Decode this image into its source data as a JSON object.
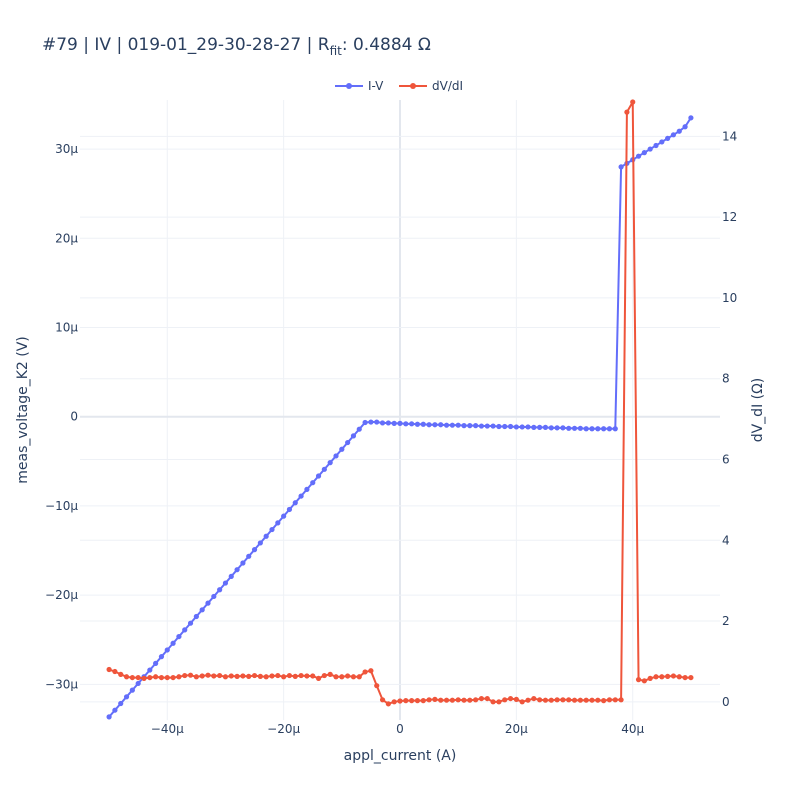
{
  "chart_data": {
    "type": "line",
    "title": {
      "main": "#79 | IV | 019-01_29-30-28-27 | R",
      "sub": "fit",
      "tail": ": 0.4884 Ω"
    },
    "xlabel": "appl_current (A)",
    "ylabel_left": "meas_voltage_K2 (V)",
    "ylabel_right": "dV_dI (Ω)",
    "xlim": [
      -5.5e-05,
      5.5e-05
    ],
    "ylim_left": [
      -3.4e-05,
      3.55e-05
    ],
    "ylim_right": [
      -0.45,
      14.9
    ],
    "x_ticks": [
      {
        "value": -4e-05,
        "label": "−40µ"
      },
      {
        "value": -2e-05,
        "label": "−20µ"
      },
      {
        "value": 0,
        "label": "0"
      },
      {
        "value": 2e-05,
        "label": "20µ"
      },
      {
        "value": 4e-05,
        "label": "40µ"
      }
    ],
    "y_left_ticks": [
      {
        "value": 3e-05,
        "label": "30µ"
      },
      {
        "value": 2e-05,
        "label": "20µ"
      },
      {
        "value": 1e-05,
        "label": "10µ"
      },
      {
        "value": 0,
        "label": "0"
      },
      {
        "value": -1e-05,
        "label": "−10µ"
      },
      {
        "value": -2e-05,
        "label": "−20µ"
      },
      {
        "value": -3e-05,
        "label": "−30µ"
      }
    ],
    "y_right_ticks": [
      {
        "value": 14,
        "label": "14"
      },
      {
        "value": 12,
        "label": "12"
      },
      {
        "value": 10,
        "label": "10"
      },
      {
        "value": 8,
        "label": "8"
      },
      {
        "value": 6,
        "label": "6"
      },
      {
        "value": 4,
        "label": "4"
      },
      {
        "value": 2,
        "label": "2"
      },
      {
        "value": 0,
        "label": "0"
      }
    ],
    "legend_position": "top-center",
    "grid": true,
    "series": [
      {
        "name": "I-V",
        "color": "#636efa",
        "axis": "left",
        "x": [
          -5e-05,
          -4.9e-05,
          -4.8e-05,
          -4.7e-05,
          -4.6e-05,
          -4.5e-05,
          -4.4e-05,
          -4.3e-05,
          -4.2e-05,
          -4.1e-05,
          -4e-05,
          -3.9e-05,
          -3.8e-05,
          -3.7e-05,
          -3.6e-05,
          -3.5e-05,
          -3.4e-05,
          -3.3e-05,
          -3.2e-05,
          -3.1e-05,
          -3e-05,
          -2.9e-05,
          -2.8e-05,
          -2.7e-05,
          -2.6e-05,
          -2.5e-05,
          -2.4e-05,
          -2.3e-05,
          -2.2e-05,
          -2.1e-05,
          -2e-05,
          -1.9e-05,
          -1.8e-05,
          -1.7e-05,
          -1.6e-05,
          -1.5e-05,
          -1.4e-05,
          -1.3e-05,
          -1.2e-05,
          -1.1e-05,
          -1e-05,
          -9e-06,
          -8e-06,
          -7e-06,
          -6e-06,
          -5e-06,
          -4e-06,
          -3e-06,
          -2e-06,
          -1e-06,
          0,
          1e-06,
          2e-06,
          3e-06,
          4e-06,
          5e-06,
          6e-06,
          7e-06,
          8e-06,
          9e-06,
          1e-05,
          1.1e-05,
          1.2e-05,
          1.3e-05,
          1.4e-05,
          1.5e-05,
          1.6e-05,
          1.7e-05,
          1.8e-05,
          1.9e-05,
          2e-05,
          2.1e-05,
          2.2e-05,
          2.3e-05,
          2.4e-05,
          2.5e-05,
          2.6e-05,
          2.7e-05,
          2.8e-05,
          2.9e-05,
          3e-05,
          3.1e-05,
          3.2e-05,
          3.3e-05,
          3.4e-05,
          3.5e-05,
          3.6e-05,
          3.7e-05,
          3.8e-05,
          3.9e-05,
          4e-05,
          4.1e-05,
          4.2e-05,
          4.3e-05,
          4.4e-05,
          4.5e-05,
          4.6e-05,
          4.7e-05,
          4.8e-05,
          4.9e-05,
          5e-05
        ],
        "y": [
          -3.365e-05,
          -3.29e-05,
          -3.215e-05,
          -3.14e-05,
          -3.065e-05,
          -2.99e-05,
          -2.915e-05,
          -2.84e-05,
          -2.765e-05,
          -2.69e-05,
          -2.615e-05,
          -2.54e-05,
          -2.465e-05,
          -2.39e-05,
          -2.315e-05,
          -2.24e-05,
          -2.165e-05,
          -2.09e-05,
          -2.015e-05,
          -1.94e-05,
          -1.865e-05,
          -1.79e-05,
          -1.715e-05,
          -1.64e-05,
          -1.565e-05,
          -1.49e-05,
          -1.415e-05,
          -1.34e-05,
          -1.265e-05,
          -1.19e-05,
          -1.115e-05,
          -1.04e-05,
          -9.65e-06,
          -8.9e-06,
          -8.15e-06,
          -7.4e-06,
          -6.65e-06,
          -5.9e-06,
          -5.15e-06,
          -4.4e-06,
          -3.65e-06,
          -2.9e-06,
          -2.15e-06,
          -1.4e-06,
          -6.5e-07,
          -6e-07,
          -6e-07,
          -7e-07,
          -7e-07,
          -7.5e-07,
          -7.5e-07,
          -8e-07,
          -8e-07,
          -8.5e-07,
          -8.5e-07,
          -9e-07,
          -9e-07,
          -9e-07,
          -9.5e-07,
          -9.5e-07,
          -9.5e-07,
          -1e-06,
          -1e-06,
          -1e-06,
          -1.05e-06,
          -1.05e-06,
          -1.05e-06,
          -1.1e-06,
          -1.1e-06,
          -1.1e-06,
          -1.15e-06,
          -1.15e-06,
          -1.15e-06,
          -1.2e-06,
          -1.2e-06,
          -1.2e-06,
          -1.25e-06,
          -1.25e-06,
          -1.25e-06,
          -1.3e-06,
          -1.3e-06,
          -1.3e-06,
          -1.35e-06,
          -1.35e-06,
          -1.35e-06,
          -1.35e-06,
          -1.35e-06,
          -1.35e-06,
          2.8e-05,
          2.84e-05,
          2.88e-05,
          2.92e-05,
          2.96e-05,
          3e-05,
          3.04e-05,
          3.08e-05,
          3.12e-05,
          3.16e-05,
          3.2e-05,
          3.25e-05,
          3.35e-05
        ]
      },
      {
        "name": "dV/dI",
        "color": "#ef553b",
        "axis": "right",
        "x": [
          -5e-05,
          -4.9e-05,
          -4.8e-05,
          -4.7e-05,
          -4.6e-05,
          -4.5e-05,
          -4.4e-05,
          -4.3e-05,
          -4.2e-05,
          -4.1e-05,
          -4e-05,
          -3.9e-05,
          -3.8e-05,
          -3.7e-05,
          -3.6e-05,
          -3.5e-05,
          -3.4e-05,
          -3.3e-05,
          -3.2e-05,
          -3.1e-05,
          -3e-05,
          -2.9e-05,
          -2.8e-05,
          -2.7e-05,
          -2.6e-05,
          -2.5e-05,
          -2.4e-05,
          -2.3e-05,
          -2.2e-05,
          -2.1e-05,
          -2e-05,
          -1.9e-05,
          -1.8e-05,
          -1.7e-05,
          -1.6e-05,
          -1.5e-05,
          -1.4e-05,
          -1.3e-05,
          -1.2e-05,
          -1.1e-05,
          -1e-05,
          -9e-06,
          -8e-06,
          -7e-06,
          -6e-06,
          -5e-06,
          -4e-06,
          -3e-06,
          -2e-06,
          -1e-06,
          0,
          1e-06,
          2e-06,
          3e-06,
          4e-06,
          5e-06,
          6e-06,
          7e-06,
          8e-06,
          9e-06,
          1e-05,
          1.1e-05,
          1.2e-05,
          1.3e-05,
          1.4e-05,
          1.5e-05,
          1.6e-05,
          1.7e-05,
          1.8e-05,
          1.9e-05,
          2e-05,
          2.1e-05,
          2.2e-05,
          2.3e-05,
          2.4e-05,
          2.5e-05,
          2.6e-05,
          2.7e-05,
          2.8e-05,
          2.9e-05,
          3e-05,
          3.1e-05,
          3.2e-05,
          3.3e-05,
          3.4e-05,
          3.5e-05,
          3.6e-05,
          3.7e-05,
          3.8e-05,
          3.9e-05,
          4e-05,
          4.1e-05,
          4.2e-05,
          4.3e-05,
          4.4e-05,
          4.5e-05,
          4.6e-05,
          4.7e-05,
          4.8e-05,
          4.9e-05,
          5e-05
        ],
        "y": [
          0.8,
          0.75,
          0.68,
          0.62,
          0.6,
          0.6,
          0.58,
          0.6,
          0.62,
          0.6,
          0.6,
          0.6,
          0.62,
          0.65,
          0.66,
          0.62,
          0.64,
          0.66,
          0.64,
          0.65,
          0.62,
          0.64,
          0.63,
          0.64,
          0.63,
          0.65,
          0.63,
          0.62,
          0.64,
          0.65,
          0.62,
          0.65,
          0.63,
          0.65,
          0.64,
          0.64,
          0.58,
          0.65,
          0.68,
          0.62,
          0.62,
          0.64,
          0.62,
          0.62,
          0.74,
          0.77,
          0.4,
          0.05,
          -0.05,
          0.0,
          0.02,
          0.03,
          0.03,
          0.03,
          0.03,
          0.05,
          0.06,
          0.04,
          0.04,
          0.04,
          0.05,
          0.04,
          0.04,
          0.05,
          0.08,
          0.08,
          0.0,
          0.0,
          0.05,
          0.08,
          0.06,
          0.0,
          0.04,
          0.08,
          0.05,
          0.04,
          0.04,
          0.05,
          0.05,
          0.05,
          0.04,
          0.04,
          0.04,
          0.04,
          0.04,
          0.03,
          0.05,
          0.05,
          0.05,
          14.6,
          14.85,
          0.55,
          0.52,
          0.58,
          0.62,
          0.62,
          0.63,
          0.64,
          0.62,
          0.6,
          0.6
        ]
      }
    ]
  }
}
